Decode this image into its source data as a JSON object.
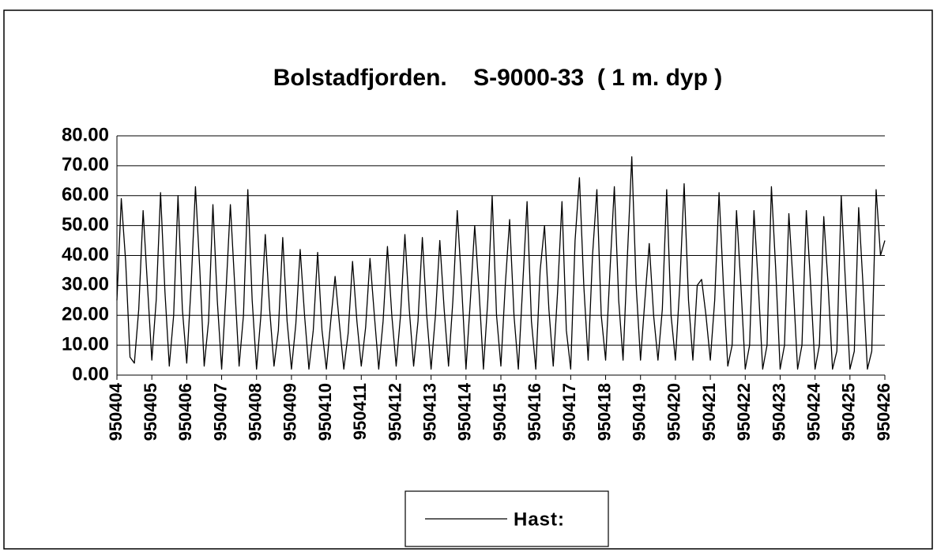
{
  "chart_data": {
    "type": "line",
    "title": "Bolstadfjorden.    S-9000-33  ( 1 m. dyp )",
    "categories": [
      "950404",
      null,
      null,
      null,
      null,
      null,
      null,
      null,
      "950405",
      null,
      null,
      null,
      null,
      null,
      null,
      null,
      "950406",
      null,
      null,
      null,
      null,
      null,
      null,
      null,
      "950407",
      null,
      null,
      null,
      null,
      null,
      null,
      null,
      "950408",
      null,
      null,
      null,
      null,
      null,
      null,
      null,
      "950409",
      null,
      null,
      null,
      null,
      null,
      null,
      null,
      "950410",
      null,
      null,
      null,
      null,
      null,
      null,
      null,
      "950411",
      null,
      null,
      null,
      null,
      null,
      null,
      null,
      "950412",
      null,
      null,
      null,
      null,
      null,
      null,
      null,
      "950413",
      null,
      null,
      null,
      null,
      null,
      null,
      null,
      "950414",
      null,
      null,
      null,
      null,
      null,
      null,
      null,
      "950415",
      null,
      null,
      null,
      null,
      null,
      null,
      null,
      "950416",
      null,
      null,
      null,
      null,
      null,
      null,
      null,
      "950417",
      null,
      null,
      null,
      null,
      null,
      null,
      null,
      "950418",
      null,
      null,
      null,
      null,
      null,
      null,
      null,
      "950419",
      null,
      null,
      null,
      null,
      null,
      null,
      null,
      "950420",
      null,
      null,
      null,
      null,
      null,
      null,
      null,
      "950421",
      null,
      null,
      null,
      null,
      null,
      null,
      null,
      "950422",
      null,
      null,
      null,
      null,
      null,
      null,
      null,
      "950423",
      null,
      null,
      null,
      null,
      null,
      null,
      null,
      "950424",
      null,
      null,
      null,
      null,
      null,
      null,
      null,
      "950425",
      null,
      null,
      null,
      null,
      null,
      null,
      null,
      "950426"
    ],
    "series": [
      {
        "name": "Hast:",
        "color": "#000000",
        "values": [
          25,
          59,
          38,
          6,
          4,
          22,
          55,
          30,
          5,
          25,
          61,
          28,
          3,
          20,
          60,
          22,
          4,
          30,
          63,
          35,
          3,
          18,
          57,
          25,
          2,
          28,
          57,
          30,
          3,
          20,
          62,
          25,
          2,
          20,
          47,
          22,
          3,
          15,
          46,
          18,
          2,
          17,
          42,
          20,
          2,
          15,
          41,
          15,
          2,
          18,
          33,
          17,
          2,
          14,
          38,
          18,
          3,
          16,
          39,
          20,
          2,
          18,
          43,
          20,
          3,
          20,
          47,
          22,
          3,
          18,
          46,
          20,
          2,
          20,
          45,
          22,
          3,
          25,
          55,
          30,
          2,
          25,
          50,
          28,
          2,
          25,
          60,
          20,
          3,
          30,
          52,
          20,
          2,
          30,
          58,
          18,
          2,
          35,
          50,
          22,
          3,
          28,
          58,
          15,
          2,
          45,
          66,
          30,
          5,
          40,
          62,
          20,
          5,
          35,
          63,
          25,
          5,
          40,
          73,
          30,
          5,
          25,
          44,
          20,
          5,
          22,
          62,
          20,
          5,
          30,
          64,
          25,
          5,
          30,
          32,
          20,
          5,
          25,
          61,
          30,
          3,
          10,
          55,
          30,
          2,
          10,
          55,
          30,
          2,
          10,
          63,
          35,
          2,
          10,
          54,
          30,
          2,
          10,
          55,
          30,
          2,
          10,
          53,
          30,
          2,
          8,
          60,
          30,
          2,
          8,
          56,
          30,
          2,
          8,
          62,
          40,
          45
        ]
      }
    ],
    "ylim": [
      0,
      80
    ],
    "yticks": [
      {
        "value": 0,
        "label": "0.00"
      },
      {
        "value": 10,
        "label": "10.00"
      },
      {
        "value": 20,
        "label": "20.00"
      },
      {
        "value": 30,
        "label": "30.00"
      },
      {
        "value": 40,
        "label": "40.00"
      },
      {
        "value": 50,
        "label": "50.00"
      },
      {
        "value": 60,
        "label": "60.00"
      },
      {
        "value": 70,
        "label": "70.00"
      },
      {
        "value": 80,
        "label": "80.00"
      }
    ],
    "grid": true,
    "legend": "bottom"
  }
}
